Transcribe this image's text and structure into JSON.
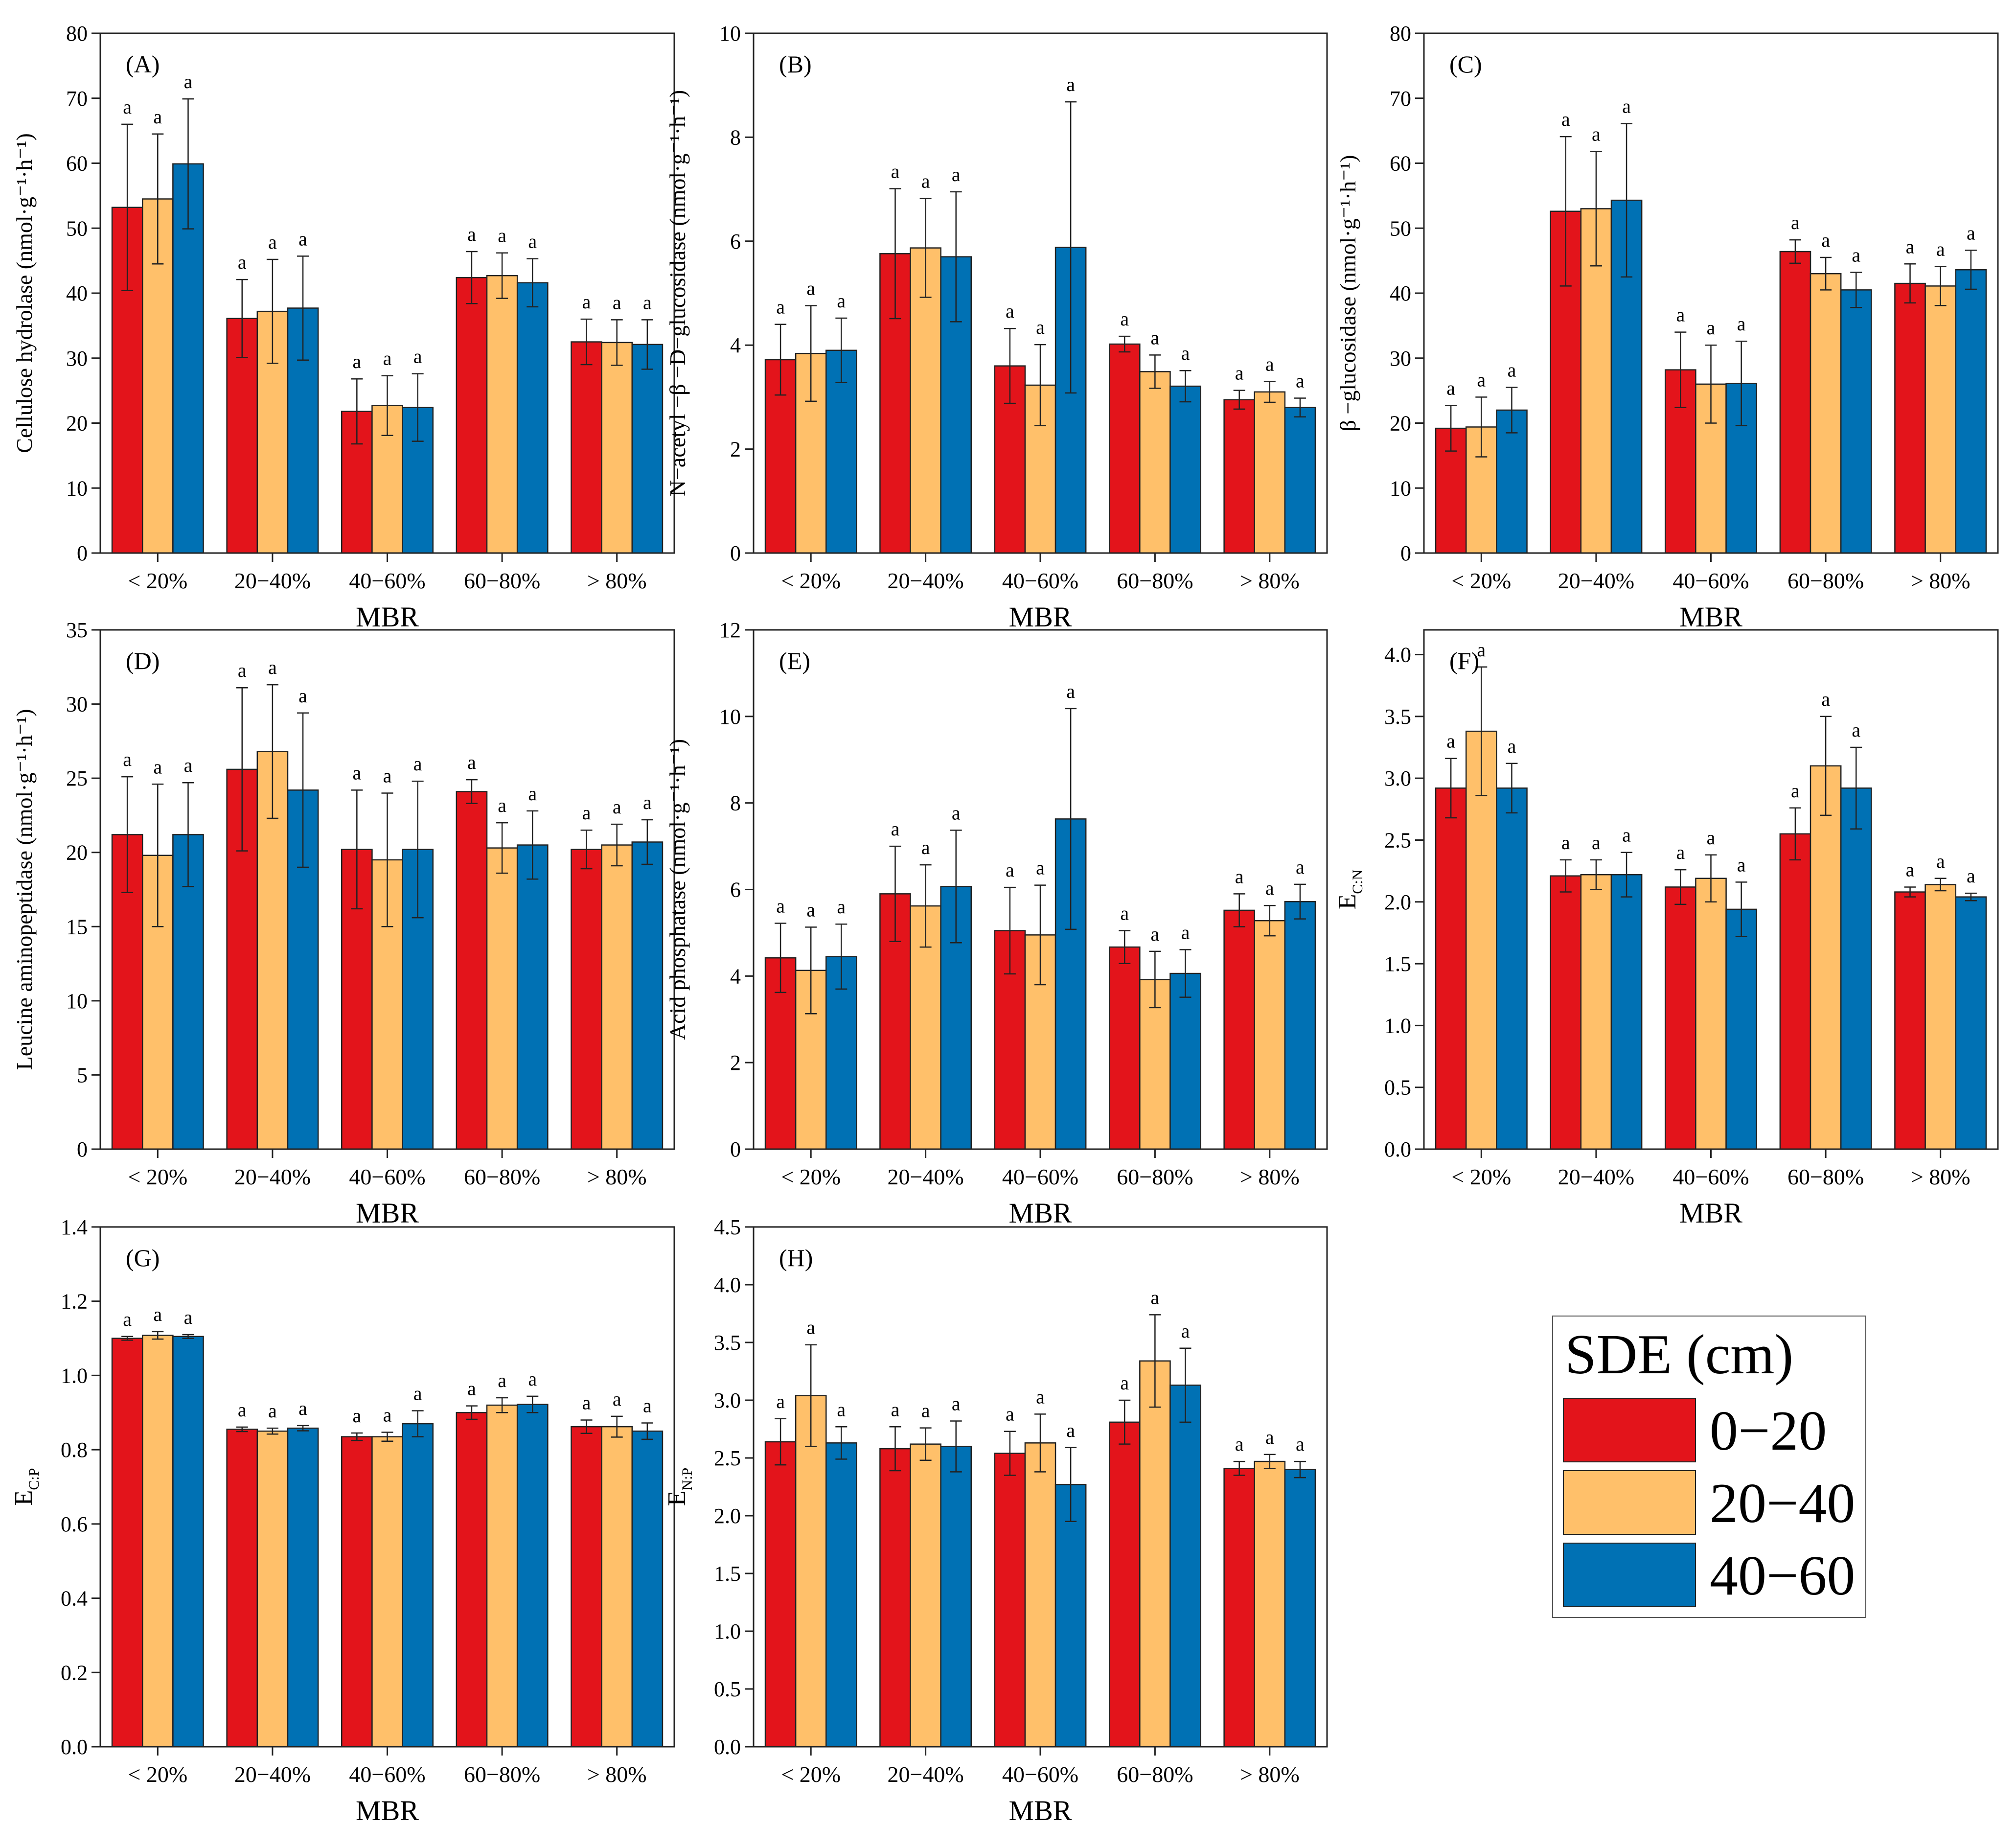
{
  "legend": {
    "title": "SDE (cm)",
    "items": [
      {
        "label": "0−20",
        "color": "#E3141B"
      },
      {
        "label": "20−40",
        "color": "#FFC06A"
      },
      {
        "label": "40−60",
        "color": "#0071B4"
      }
    ]
  },
  "chart_data": [
    {
      "type": "bar",
      "panel": "(A)",
      "ylabel": "Cellulose hydrolase (nmol·g⁻¹·h⁻¹)",
      "xlabel": "MBR",
      "categories": [
        "< 20%",
        "20−40%",
        "40−60%",
        "60−80%",
        "> 80%"
      ],
      "ylim": [
        0,
        80
      ],
      "yticks": [
        "0",
        "10",
        "20",
        "30",
        "40",
        "50",
        "60",
        "70",
        "80"
      ],
      "series": [
        {
          "name": "0−20",
          "values": [
            53.2,
            36.1,
            21.8,
            42.4,
            32.5
          ],
          "errors": [
            12.8,
            6.0,
            5.0,
            4.0,
            3.5
          ]
        },
        {
          "name": "20−40",
          "values": [
            54.5,
            37.2,
            22.7,
            42.7,
            32.4
          ],
          "errors": [
            10.0,
            8.0,
            4.6,
            3.5,
            3.5
          ]
        },
        {
          "name": "40−60",
          "values": [
            59.9,
            37.7,
            22.4,
            41.6,
            32.1
          ],
          "errors": [
            10.0,
            8.0,
            5.2,
            3.7,
            3.8
          ]
        }
      ],
      "sig_letters": [
        "a",
        "a",
        "a",
        "a",
        "a",
        "a",
        "a",
        "a",
        "a",
        "a",
        "a",
        "a",
        "a",
        "a",
        "a"
      ]
    },
    {
      "type": "bar",
      "panel": "(B)",
      "ylabel": "N−acetyl −β −D−glucosidase (nmol·g⁻¹·h⁻¹)",
      "xlabel": "MBR",
      "categories": [
        "< 20%",
        "20−40%",
        "40−60%",
        "60−80%",
        "> 80%"
      ],
      "ylim": [
        0,
        10
      ],
      "yticks": [
        "0",
        "2",
        "4",
        "6",
        "8",
        "10"
      ],
      "series": [
        {
          "name": "0−20",
          "values": [
            3.72,
            5.76,
            3.6,
            4.02,
            2.95
          ],
          "errors": [
            0.68,
            1.25,
            0.72,
            0.15,
            0.18
          ]
        },
        {
          "name": "20−40",
          "values": [
            3.84,
            5.87,
            3.23,
            3.49,
            3.1
          ],
          "errors": [
            0.92,
            0.95,
            0.78,
            0.32,
            0.2
          ]
        },
        {
          "name": "40−60",
          "values": [
            3.9,
            5.7,
            5.88,
            3.21,
            2.8
          ],
          "errors": [
            0.62,
            1.25,
            2.8,
            0.3,
            0.18
          ]
        }
      ],
      "sig_letters": [
        "a",
        "a",
        "a",
        "a",
        "a",
        "a",
        "a",
        "a",
        "a",
        "a",
        "a",
        "a",
        "a",
        "a",
        "a"
      ]
    },
    {
      "type": "bar",
      "panel": "(C)",
      "ylabel": "β −glucosidase (nmol·g⁻¹·h⁻¹)",
      "xlabel": "MBR",
      "categories": [
        "< 20%",
        "20−40%",
        "40−60%",
        "60−80%",
        "> 80%"
      ],
      "ylim": [
        0,
        80
      ],
      "yticks": [
        "0",
        "10",
        "20",
        "30",
        "40",
        "50",
        "60",
        "70",
        "80"
      ],
      "series": [
        {
          "name": "0−20",
          "values": [
            19.2,
            52.6,
            28.2,
            46.4,
            41.5
          ],
          "errors": [
            3.5,
            11.5,
            5.8,
            1.8,
            3.0
          ]
        },
        {
          "name": "20−40",
          "values": [
            19.4,
            53.0,
            26.0,
            43.0,
            41.1
          ],
          "errors": [
            4.6,
            8.8,
            6.0,
            2.5,
            3.0
          ]
        },
        {
          "name": "40−60",
          "values": [
            22.0,
            54.3,
            26.1,
            40.5,
            43.6
          ],
          "errors": [
            3.5,
            11.8,
            6.5,
            2.7,
            3.0
          ]
        }
      ],
      "sig_letters": [
        "a",
        "a",
        "a",
        "a",
        "a",
        "a",
        "a",
        "a",
        "a",
        "a",
        "a",
        "a",
        "a",
        "a",
        "a"
      ]
    },
    {
      "type": "bar",
      "panel": "(D)",
      "ylabel": "Leucine aminopeptidase (nmol·g⁻¹·h⁻¹)",
      "xlabel": "MBR",
      "categories": [
        "< 20%",
        "20−40%",
        "40−60%",
        "60−80%",
        "> 80%"
      ],
      "ylim": [
        0,
        35
      ],
      "yticks": [
        "0",
        "5",
        "10",
        "15",
        "20",
        "25",
        "30",
        "35"
      ],
      "series": [
        {
          "name": "0−20",
          "values": [
            21.2,
            25.6,
            20.2,
            24.1,
            20.2
          ],
          "errors": [
            3.9,
            5.5,
            4.0,
            0.8,
            1.3
          ]
        },
        {
          "name": "20−40",
          "values": [
            19.8,
            26.8,
            19.5,
            20.3,
            20.5
          ],
          "errors": [
            4.8,
            4.5,
            4.5,
            1.7,
            1.4
          ]
        },
        {
          "name": "40−60",
          "values": [
            21.2,
            24.2,
            20.2,
            20.5,
            20.7
          ],
          "errors": [
            3.5,
            5.2,
            4.6,
            2.3,
            1.5
          ]
        }
      ],
      "sig_letters": [
        "a",
        "a",
        "a",
        "a",
        "a",
        "a",
        "a",
        "a",
        "a",
        "a",
        "a",
        "a",
        "a",
        "a",
        "a"
      ]
    },
    {
      "type": "bar",
      "panel": "(E)",
      "ylabel": "Acid phosphatase (nmol·g⁻¹·h⁻¹)",
      "xlabel": "MBR",
      "categories": [
        "< 20%",
        "20−40%",
        "40−60%",
        "60−80%",
        "> 80%"
      ],
      "ylim": [
        0,
        12
      ],
      "yticks": [
        "0",
        "2",
        "4",
        "6",
        "8",
        "10",
        "12"
      ],
      "series": [
        {
          "name": "0−20",
          "values": [
            4.42,
            5.9,
            5.05,
            4.67,
            5.52
          ],
          "errors": [
            0.8,
            1.1,
            1.0,
            0.38,
            0.38
          ]
        },
        {
          "name": "20−40",
          "values": [
            4.13,
            5.62,
            4.95,
            3.92,
            5.28
          ],
          "errors": [
            1.0,
            0.95,
            1.15,
            0.65,
            0.35
          ]
        },
        {
          "name": "40−60",
          "values": [
            4.45,
            6.07,
            7.63,
            4.06,
            5.72
          ],
          "errors": [
            0.75,
            1.3,
            2.55,
            0.55,
            0.4
          ]
        }
      ],
      "sig_letters": [
        "a",
        "a",
        "a",
        "a",
        "a",
        "a",
        "a",
        "a",
        "a",
        "a",
        "a",
        "a",
        "a",
        "a",
        "a"
      ]
    },
    {
      "type": "bar",
      "panel": "(F)",
      "ylabel": "E_C:N",
      "ylabel_main": "E",
      "ylabel_sub": "C:N",
      "xlabel": "MBR",
      "categories": [
        "< 20%",
        "20−40%",
        "40−60%",
        "60−80%",
        "> 80%"
      ],
      "ylim": [
        0,
        4.2
      ],
      "yticks": [
        "0.0",
        "0.5",
        "1.0",
        "1.5",
        "2.0",
        "2.5",
        "3.0",
        "3.5",
        "4.0"
      ],
      "series": [
        {
          "name": "0−20",
          "values": [
            2.92,
            2.21,
            2.12,
            2.55,
            2.08
          ],
          "errors": [
            0.24,
            0.13,
            0.14,
            0.21,
            0.04
          ]
        },
        {
          "name": "20−40",
          "values": [
            3.38,
            2.22,
            2.19,
            3.1,
            2.14
          ],
          "errors": [
            0.52,
            0.12,
            0.19,
            0.4,
            0.05
          ]
        },
        {
          "name": "40−60",
          "values": [
            2.92,
            2.22,
            1.94,
            2.92,
            2.04
          ],
          "errors": [
            0.2,
            0.18,
            0.22,
            0.33,
            0.03
          ]
        }
      ],
      "sig_letters": [
        "a",
        "a",
        "a",
        "a",
        "a",
        "a",
        "a",
        "a",
        "a",
        "a",
        "a",
        "a",
        "a",
        "a",
        "a"
      ]
    },
    {
      "type": "bar",
      "panel": "(G)",
      "ylabel": "E_C:P",
      "ylabel_main": "E",
      "ylabel_sub": "C:P",
      "xlabel": "MBR",
      "categories": [
        "< 20%",
        "20−40%",
        "40−60%",
        "60−80%",
        "> 80%"
      ],
      "ylim": [
        0,
        1.4
      ],
      "yticks": [
        "0.0",
        "0.2",
        "0.4",
        "0.6",
        "0.8",
        "1.0",
        "1.2",
        "1.4"
      ],
      "series": [
        {
          "name": "0−20",
          "values": [
            1.1,
            0.855,
            0.835,
            0.9,
            0.862
          ],
          "errors": [
            0.005,
            0.006,
            0.01,
            0.018,
            0.018
          ]
        },
        {
          "name": "20−40",
          "values": [
            1.108,
            0.85,
            0.835,
            0.92,
            0.862
          ],
          "errors": [
            0.01,
            0.008,
            0.012,
            0.02,
            0.028
          ]
        },
        {
          "name": "40−60",
          "values": [
            1.105,
            0.858,
            0.87,
            0.922,
            0.85
          ],
          "errors": [
            0.005,
            0.007,
            0.035,
            0.022,
            0.022
          ]
        }
      ],
      "sig_letters": [
        "a",
        "a",
        "a",
        "a",
        "a",
        "a",
        "a",
        "a",
        "a",
        "a",
        "a",
        "a",
        "a",
        "a",
        "a"
      ]
    },
    {
      "type": "bar",
      "panel": "(H)",
      "ylabel": "E_N:P",
      "ylabel_main": "E",
      "ylabel_sub": "N:P",
      "xlabel": "MBR",
      "categories": [
        "< 20%",
        "20−40%",
        "40−60%",
        "60−80%",
        "> 80%"
      ],
      "ylim": [
        0,
        4.5
      ],
      "yticks": [
        "0.0",
        "0.5",
        "1.0",
        "1.5",
        "2.0",
        "2.5",
        "3.0",
        "3.5",
        "4.0",
        "4.5"
      ],
      "series": [
        {
          "name": "0−20",
          "values": [
            2.64,
            2.58,
            2.54,
            2.81,
            2.41
          ],
          "errors": [
            0.2,
            0.19,
            0.19,
            0.19,
            0.06
          ]
        },
        {
          "name": "20−40",
          "values": [
            3.04,
            2.62,
            2.63,
            3.34,
            2.47
          ],
          "errors": [
            0.44,
            0.14,
            0.25,
            0.4,
            0.06
          ]
        },
        {
          "name": "40−60",
          "values": [
            2.63,
            2.6,
            2.27,
            3.13,
            2.4
          ],
          "errors": [
            0.14,
            0.22,
            0.32,
            0.32,
            0.07
          ]
        }
      ],
      "sig_letters": [
        "a",
        "a",
        "a",
        "a",
        "a",
        "a",
        "a",
        "a",
        "a",
        "a",
        "a",
        "a",
        "a",
        "a",
        "a"
      ]
    }
  ]
}
